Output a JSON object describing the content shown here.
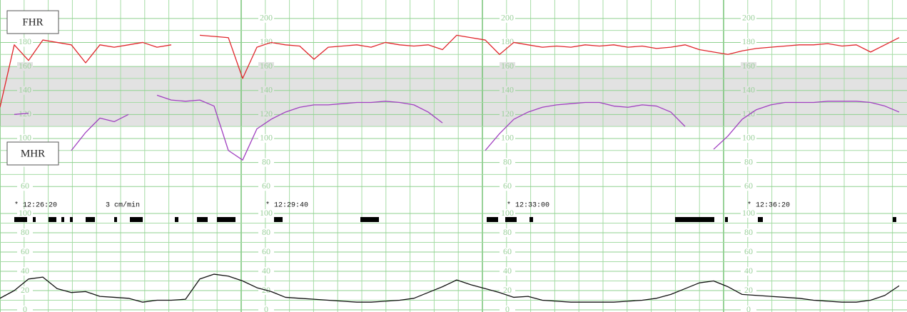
{
  "chart_data": [
    {
      "type": "line",
      "series": [
        {
          "name": "FHR",
          "color": "#e0262b",
          "values": [
            126,
            178,
            165,
            182,
            180,
            178,
            163,
            178,
            176,
            178,
            180,
            176,
            178,
            null,
            186,
            185,
            184,
            150,
            176,
            180,
            178,
            177,
            166,
            176,
            177,
            178,
            176,
            180,
            178,
            177,
            178,
            174,
            186,
            184,
            182,
            170,
            180,
            178,
            176,
            177,
            176,
            178,
            177,
            178,
            176,
            177,
            175,
            176,
            178,
            174,
            172,
            170,
            173,
            175,
            176,
            177,
            178,
            178,
            179,
            177,
            178,
            172,
            178,
            184
          ]
        },
        {
          "name": "MHR",
          "color": "#a040c0",
          "values": [
            null,
            120,
            121,
            null,
            null,
            90,
            105,
            117,
            114,
            120,
            null,
            136,
            132,
            131,
            132,
            127,
            90,
            82,
            108,
            116,
            122,
            126,
            128,
            128,
            129,
            130,
            130,
            131,
            130,
            128,
            122,
            113,
            null,
            null,
            90,
            104,
            116,
            122,
            126,
            128,
            129,
            130,
            130,
            127,
            126,
            128,
            127,
            122,
            110,
            null,
            91,
            102,
            116,
            124,
            128,
            130,
            130,
            130,
            131,
            131,
            131,
            130,
            127,
            122
          ]
        }
      ],
      "ylim": [
        50,
        210
      ],
      "yticks": [
        60,
        80,
        100,
        120,
        140,
        160,
        180,
        200
      ],
      "band": [
        110,
        160
      ],
      "grid": true,
      "annotations": [
        "* 12:26:20",
        "3 cm/min",
        "* 12:29:40",
        "* 12:33:00",
        "* 12:36:20"
      ]
    },
    {
      "type": "line",
      "series": [
        {
          "color": "#111111",
          "values": [
            12,
            20,
            32,
            34,
            22,
            18,
            19,
            14,
            13,
            12,
            8,
            10,
            10,
            11,
            32,
            37,
            35,
            30,
            23,
            19,
            13,
            12,
            11,
            10,
            9,
            8,
            8,
            9,
            10,
            12,
            18,
            24,
            31,
            26,
            22,
            18,
            13,
            14,
            10,
            9,
            8,
            8,
            8,
            8,
            9,
            10,
            12,
            16,
            22,
            28,
            30,
            24,
            16,
            15,
            14,
            13,
            12,
            10,
            9,
            8,
            8,
            10,
            15,
            25
          ]
        }
      ],
      "ylim": [
        0,
        100
      ],
      "yticks": [
        0,
        20,
        40,
        60,
        80,
        100
      ],
      "grid": true
    }
  ]
}
